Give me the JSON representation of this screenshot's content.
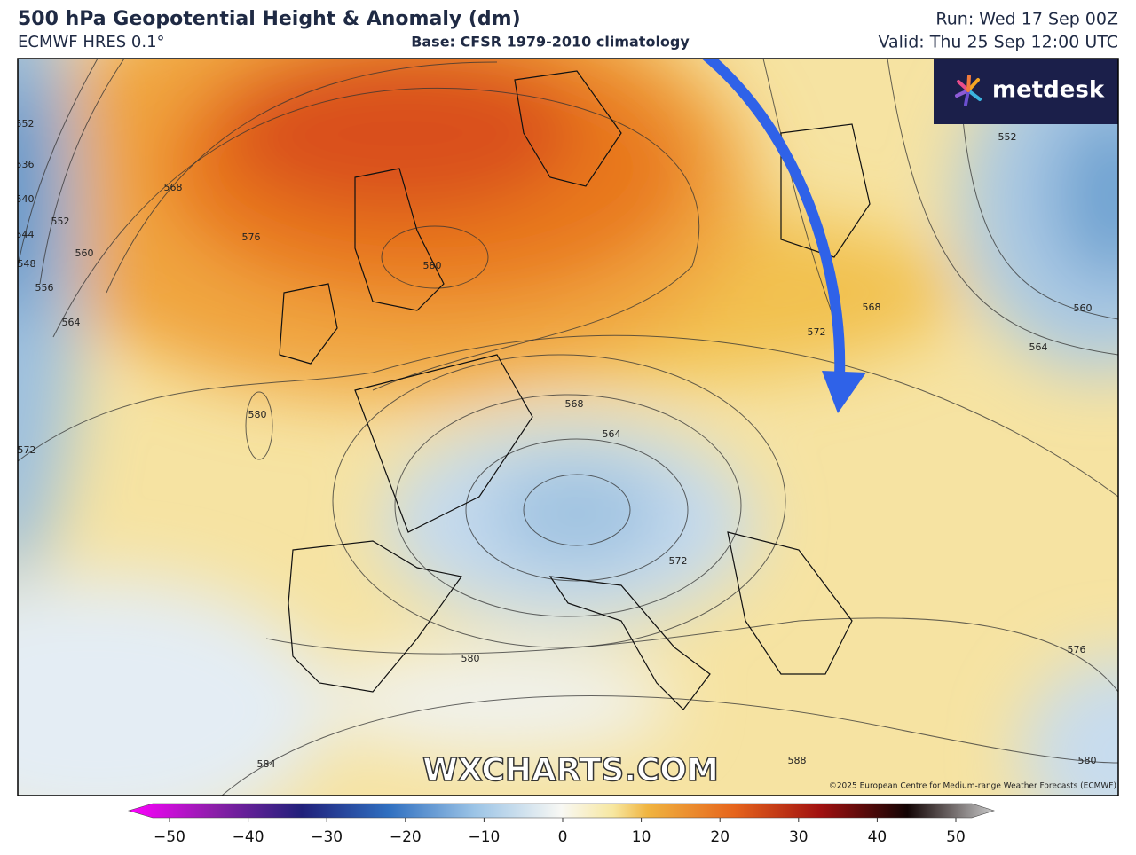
{
  "header": {
    "title": "500 hPa Geopotential Height & Anomaly (dm)",
    "model": "ECMWF HRES 0.1°",
    "base": "Base: CFSR 1979-2010 climatology",
    "run": "Run: Wed 17 Sep 00Z",
    "valid": "Valid: Thu 25 Sep 12:00 UTC"
  },
  "logo": "metdesk",
  "watermark": "WXCHARTS.COM",
  "copyright": "©2025 European Centre for Medium-range Weather Forecasts (ECMWF)",
  "contour_labels": [
    552,
    536,
    540,
    544,
    548,
    552,
    556,
    560,
    564,
    568,
    572,
    576,
    580,
    580,
    568,
    564,
    572,
    580,
    584,
    572,
    568,
    552,
    560,
    564,
    576,
    580,
    588
  ],
  "colorbar": {
    "range": [
      -50,
      50
    ],
    "ticks": [
      {
        "value": -50,
        "label": "−50"
      },
      {
        "value": -40,
        "label": "−40"
      },
      {
        "value": -30,
        "label": "−30"
      },
      {
        "value": -20,
        "label": "−20"
      },
      {
        "value": -10,
        "label": "−10"
      },
      0,
      10,
      20,
      30,
      40,
      50
    ]
  }
}
